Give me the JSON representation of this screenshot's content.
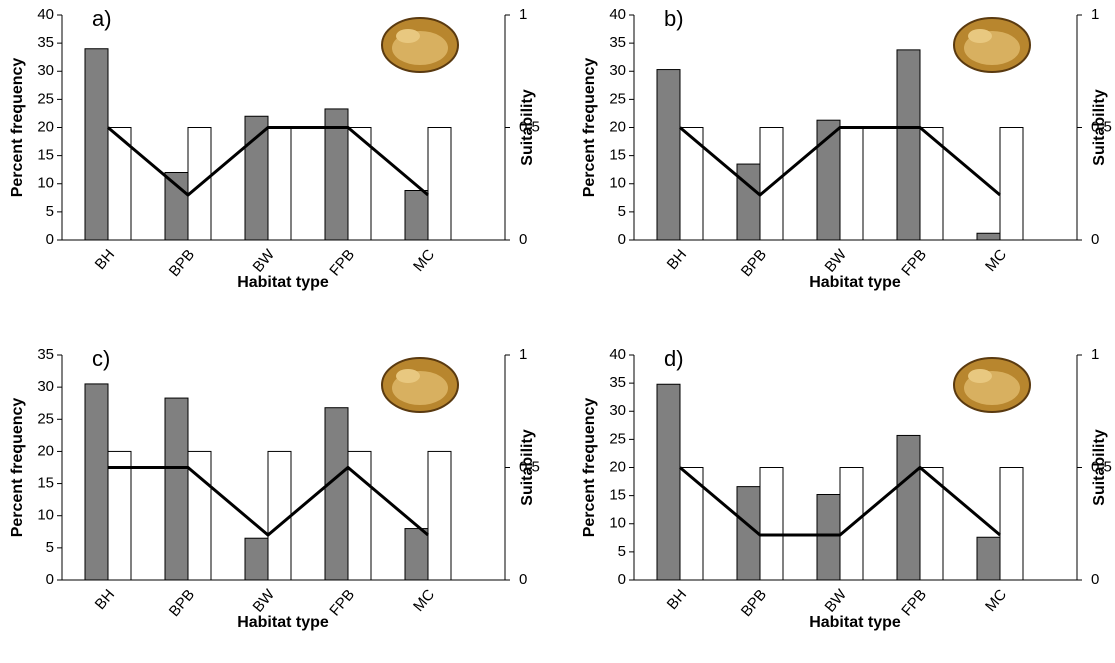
{
  "chart_data": [
    {
      "type": "bar",
      "annotation": "a)",
      "ylabel": "Percent frequency",
      "y2label": "Suitability",
      "xlabel": "Habitat type",
      "categories": [
        "BH",
        "BPB",
        "BW",
        "FPB",
        "MC"
      ],
      "series": [
        {
          "type": "bar",
          "color": "#808080",
          "values": [
            34,
            12,
            22,
            23.3,
            8.8
          ]
        },
        {
          "type": "bar",
          "color": "#ffffff",
          "values": [
            20,
            20,
            20,
            20,
            20
          ]
        },
        {
          "type": "line",
          "color": "#000000",
          "axis": "y2",
          "values": [
            0.5,
            0.2,
            0.5,
            0.5,
            0.2
          ]
        }
      ],
      "ylim": [
        0,
        40
      ],
      "yticks": [
        0,
        5,
        10,
        15,
        20,
        25,
        30,
        35,
        40
      ],
      "y2lim": [
        0,
        1
      ],
      "y2ticks": [
        0,
        0.5,
        1
      ]
    },
    {
      "type": "bar",
      "annotation": "b)",
      "ylabel": "Percent frequency",
      "y2label": "Suitability",
      "xlabel": "Habitat type",
      "categories": [
        "BH",
        "BPB",
        "BW",
        "FPB",
        "MC"
      ],
      "series": [
        {
          "type": "bar",
          "color": "#808080",
          "values": [
            30.3,
            13.5,
            21.3,
            33.8,
            1.2
          ]
        },
        {
          "type": "bar",
          "color": "#ffffff",
          "values": [
            20,
            20,
            20,
            20,
            20
          ]
        },
        {
          "type": "line",
          "color": "#000000",
          "axis": "y2",
          "values": [
            0.5,
            0.2,
            0.5,
            0.5,
            0.2
          ]
        }
      ],
      "ylim": [
        0,
        40
      ],
      "yticks": [
        0,
        5,
        10,
        15,
        20,
        25,
        30,
        35,
        40
      ],
      "y2lim": [
        0,
        1
      ],
      "y2ticks": [
        0,
        0.5,
        1
      ]
    },
    {
      "type": "bar",
      "annotation": "c)",
      "ylabel": "Percent frequency",
      "y2label": "Suitability",
      "xlabel": "Habitat type",
      "categories": [
        "BH",
        "BPB",
        "BW",
        "FPB",
        "MC"
      ],
      "series": [
        {
          "type": "bar",
          "color": "#808080",
          "values": [
            30.5,
            28.3,
            6.5,
            26.8,
            8
          ]
        },
        {
          "type": "bar",
          "color": "#ffffff",
          "values": [
            20,
            20,
            20,
            20,
            20
          ]
        },
        {
          "type": "line",
          "color": "#000000",
          "axis": "y2",
          "values": [
            0.5,
            0.5,
            0.2,
            0.5,
            0.2
          ]
        }
      ],
      "ylim": [
        0,
        35
      ],
      "yticks": [
        0,
        5,
        10,
        15,
        20,
        25,
        30,
        35
      ],
      "y2lim": [
        0,
        1
      ],
      "y2ticks": [
        0,
        0.5,
        1
      ]
    },
    {
      "type": "bar",
      "annotation": "d)",
      "ylabel": "Percent frequency",
      "y2label": "Suitability",
      "xlabel": "Habitat type",
      "categories": [
        "BH",
        "BPB",
        "BW",
        "FPB",
        "MC"
      ],
      "series": [
        {
          "type": "bar",
          "color": "#808080",
          "values": [
            34.8,
            16.6,
            15.2,
            25.7,
            7.6
          ]
        },
        {
          "type": "bar",
          "color": "#ffffff",
          "values": [
            20,
            20,
            20,
            20,
            20
          ]
        },
        {
          "type": "line",
          "color": "#000000",
          "axis": "y2",
          "values": [
            0.5,
            0.2,
            0.2,
            0.5,
            0.2
          ]
        }
      ],
      "ylim": [
        0,
        40
      ],
      "yticks": [
        0,
        5,
        10,
        15,
        20,
        25,
        30,
        35,
        40
      ],
      "y2lim": [
        0,
        1
      ],
      "y2ticks": [
        0,
        0.5,
        1
      ]
    }
  ]
}
